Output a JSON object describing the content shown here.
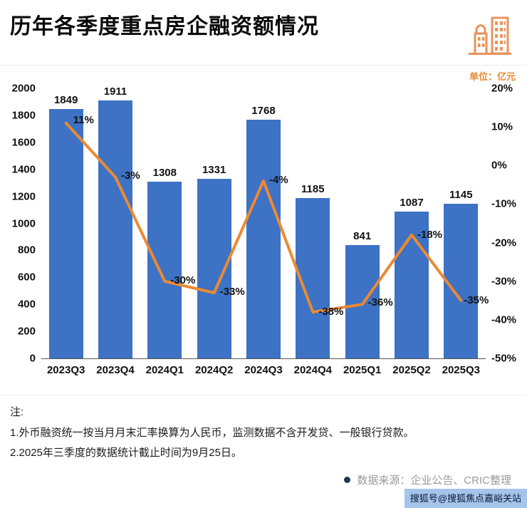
{
  "header": {
    "title": "历年各季度重点房企融资额情况"
  },
  "unit_label": "单位：亿元",
  "chart_data": {
    "type": "bar",
    "title": "历年各季度重点房企融资额情况",
    "categories": [
      "2023Q3",
      "2023Q4",
      "2024Q1",
      "2024Q2",
      "2024Q3",
      "2024Q4",
      "2025Q1",
      "2025Q2",
      "2025Q3"
    ],
    "series": [
      {
        "type": "bar",
        "values": [
          1849,
          1911,
          1308,
          1331,
          1768,
          1185,
          841,
          1087,
          1145
        ]
      },
      {
        "type": "line",
        "values": [
          11,
          -3,
          -30,
          -33,
          -4,
          -38,
          -36,
          -18,
          -35
        ],
        "value_labels": [
          "11%",
          "-3%",
          "-30%",
          "-33%",
          "-4%",
          "-38%",
          "-36%",
          "-18%",
          "-35%"
        ]
      }
    ],
    "left_axis": {
      "min": 0,
      "max": 2000,
      "tick_step": 200
    },
    "right_axis": {
      "min": -50,
      "max": 20,
      "tick_step": 10,
      "suffix": "%"
    },
    "bar_color": "#3D72C5",
    "line_color": "#EC8A33",
    "grid": false,
    "legend": false
  },
  "notes": {
    "heading": "注:",
    "line1": "1.外币融资统一按当月月末汇率换算为人民币，监测数据不含开发贷、一般银行贷款。",
    "line2": "2.2025年三季度的数据统计截止时间为9月25日。"
  },
  "source": {
    "text": "数据来源：企业公告、CRIC整理"
  },
  "watermark": {
    "text": "搜狐号@搜狐焦点嘉峪关站"
  },
  "colors": {
    "accent_orange": "#E8882F",
    "bar_blue": "#3D72C5",
    "line_orange": "#EC8A33"
  }
}
